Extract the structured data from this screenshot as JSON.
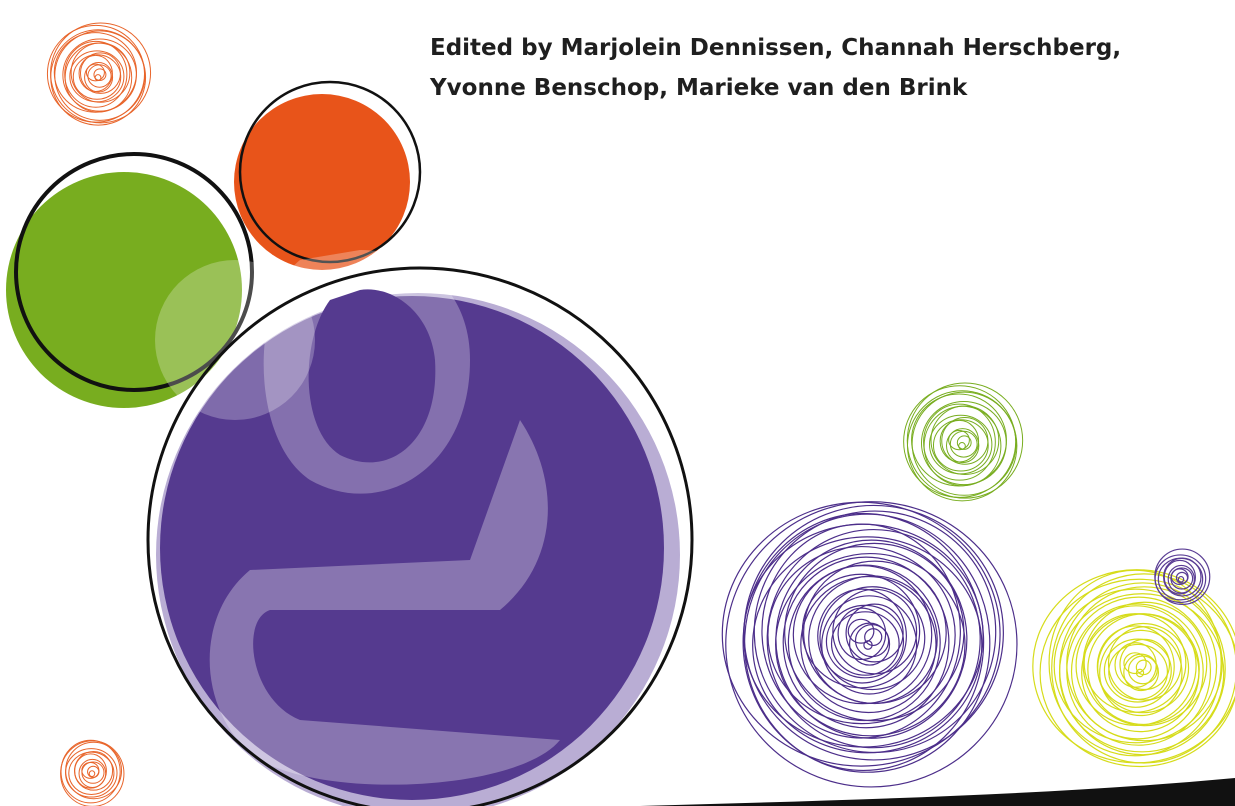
{
  "header": {
    "lines": [
      "Edited by Marjolein Dennissen, Channah Herschberg,",
      "Yvonne Benschop, Marieke van den Brink"
    ]
  }
}
